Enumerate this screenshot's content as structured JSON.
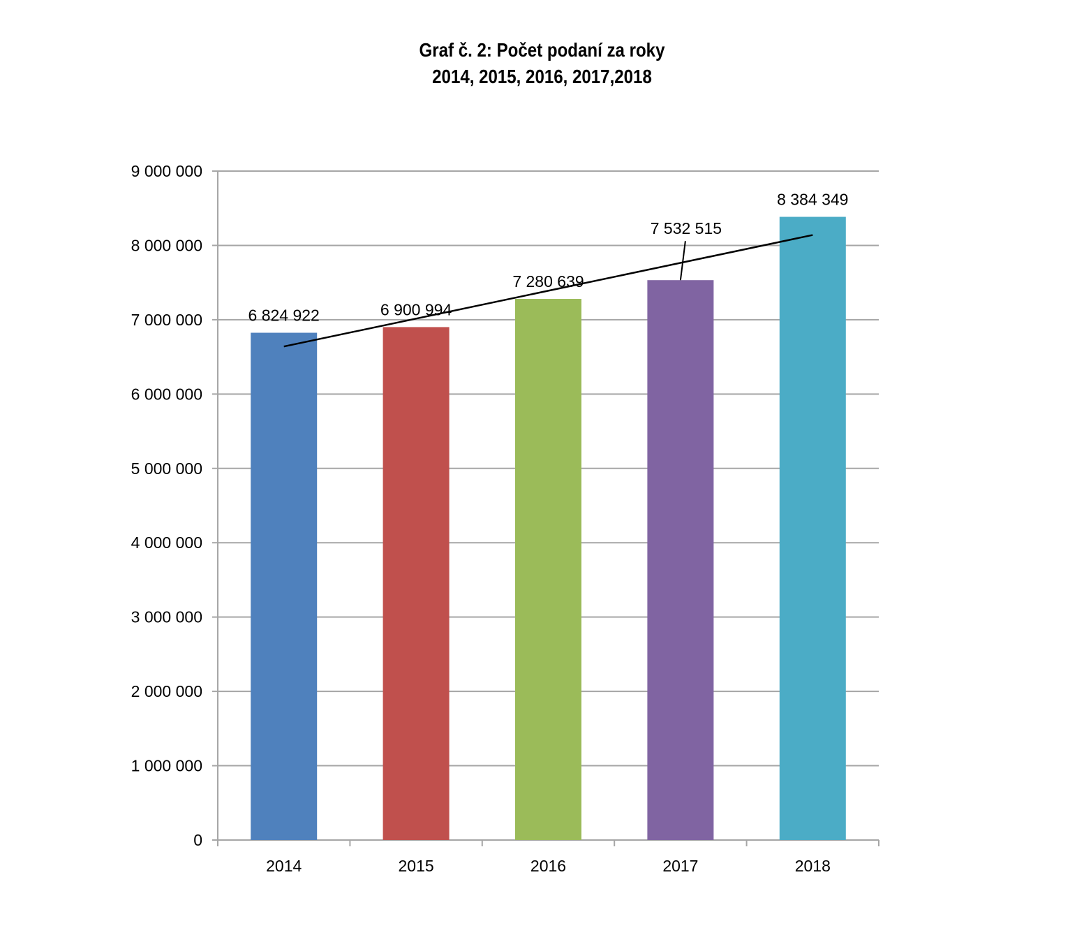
{
  "chart_data": {
    "type": "bar",
    "title_lines": [
      "Graf č. 2: Počet podaní za roky",
      "2014, 2015, 2016, 2017,2018"
    ],
    "categories": [
      "2014",
      "2015",
      "2016",
      "2017",
      "2018"
    ],
    "values": [
      6824922,
      6900994,
      7280639,
      7532515,
      8384349
    ],
    "data_labels": [
      "6 824 922",
      "6 900 994",
      "7 280 639",
      "7 532 515",
      "8 384 349"
    ],
    "colors": [
      "#4F81BD",
      "#C0504D",
      "#9BBB59",
      "#8064A2",
      "#4BACC6"
    ],
    "ylim": [
      0,
      9000000
    ],
    "yticks": [
      0,
      1000000,
      2000000,
      3000000,
      4000000,
      5000000,
      6000000,
      7000000,
      8000000,
      9000000
    ],
    "ytick_labels": [
      "0",
      "1 000 000",
      "2 000 000",
      "3 000 000",
      "4 000 000",
      "5 000 000",
      "6 000 000",
      "7 000 000",
      "8 000 000",
      "9 000 000"
    ],
    "grid": true,
    "trendline": {
      "type": "linear",
      "start": 6640000,
      "end": 8140000,
      "color": "#000000"
    },
    "gridline_color": "#A6A6A6"
  }
}
